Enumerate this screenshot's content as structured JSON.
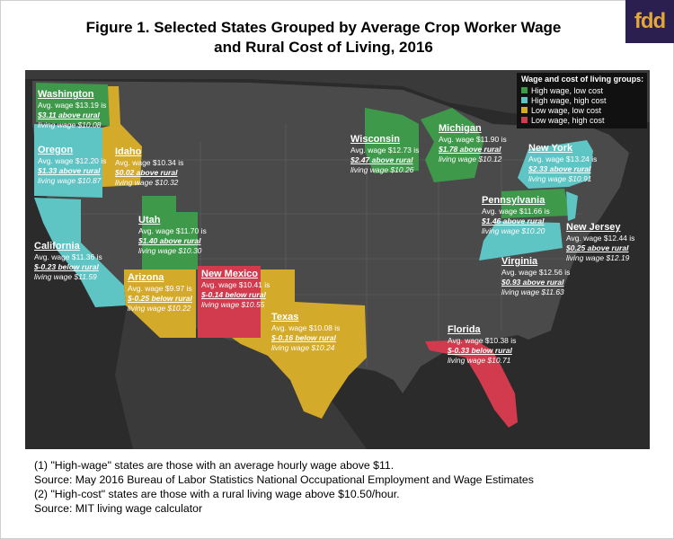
{
  "title_line1": "Figure 1. Selected States Grouped by Average Crop Worker Wage",
  "title_line2": "and Rural Cost of Living, 2016",
  "logo": "fdd",
  "legend": {
    "title": "Wage and cost of living groups:",
    "items": [
      {
        "label": "High wage, low cost",
        "color": "#3e9a4a"
      },
      {
        "label": "High wage, high cost",
        "color": "#5ec4c4"
      },
      {
        "label": "Low wage, low cost",
        "color": "#d4aa2a"
      },
      {
        "label": "Low wage, high cost",
        "color": "#d23a4e"
      }
    ]
  },
  "states": {
    "washington": {
      "name": "Washington",
      "avg": "Avg. wage $13.19 is",
      "diff": "$3.11 above rural",
      "living": "living wage $10.08"
    },
    "oregon": {
      "name": "Oregon",
      "avg": "Avg. wage $12.20 is",
      "diff": "$1.33 above rural",
      "living": "living wage $10.87"
    },
    "idaho": {
      "name": "Idaho",
      "avg": "Avg. wage $10.34 is",
      "diff": "$0.02 above rural",
      "living": "living wage $10.32"
    },
    "california": {
      "name": "California",
      "avg": "Avg. wage $11.36 is",
      "diff": "$-0.23 below rural",
      "living": "living wage $11.59"
    },
    "utah": {
      "name": "Utah",
      "avg": "Avg. wage $11.70 is",
      "diff": "$1.40 above rural",
      "living": "living wage $10.30"
    },
    "arizona": {
      "name": "Arizona",
      "avg": "Avg. wage $9.97 is",
      "diff": "$-0.25 below rural",
      "living": "living wage $10.22"
    },
    "new_mexico": {
      "name": "New Mexico",
      "avg": "Avg. wage $10.41 is",
      "diff": "$-0.14 below rural",
      "living": "living wage $10.55"
    },
    "texas": {
      "name": "Texas",
      "avg": "Avg. wage $10.08 is",
      "diff": "$-0.16 below rural",
      "living": "living wage $10.24"
    },
    "wisconsin": {
      "name": "Wisconsin",
      "avg": "Avg. wage $12.73 is",
      "diff": "$2.47 above rural",
      "living": "living wage $10.26"
    },
    "michigan": {
      "name": "Michigan",
      "avg": "Avg. wage $11.90 is",
      "diff": "$1.78 above rural",
      "living": "living wage $10.12"
    },
    "new_york": {
      "name": "New York",
      "avg": "Avg. wage $13.24 is",
      "diff": "$2.33 above rural",
      "living": "living wage $10.91"
    },
    "pennsylvania": {
      "name": "Pennsylvania",
      "avg": "Avg. wage $11.66 is",
      "diff": "$1.46 above rural",
      "living": "living wage $10.20"
    },
    "new_jersey": {
      "name": "New Jersey",
      "avg": "Avg. wage $12.44 is",
      "diff": "$0.25 above rural",
      "living": "living wage $12.19"
    },
    "virginia": {
      "name": "Virginia",
      "avg": "Avg. wage $12.56 is",
      "diff": "$0.93 above rural",
      "living": "living wage $11.63"
    },
    "florida": {
      "name": "Florida",
      "avg": "Avg. wage $10.38 is",
      "diff": "$-0.33 below rural",
      "living": "living wage $10.71"
    }
  },
  "notes": [
    "(1) \"High-wage\" states are those with an average hourly wage above $11.",
    "Source: May 2016 Bureau of Labor Statistics National Occupational Employment and Wage Estimates",
    "(2) \"High-cost\" states are those with a rural living wage above $10.50/hour.",
    "Source: MIT living wage calculator"
  ]
}
